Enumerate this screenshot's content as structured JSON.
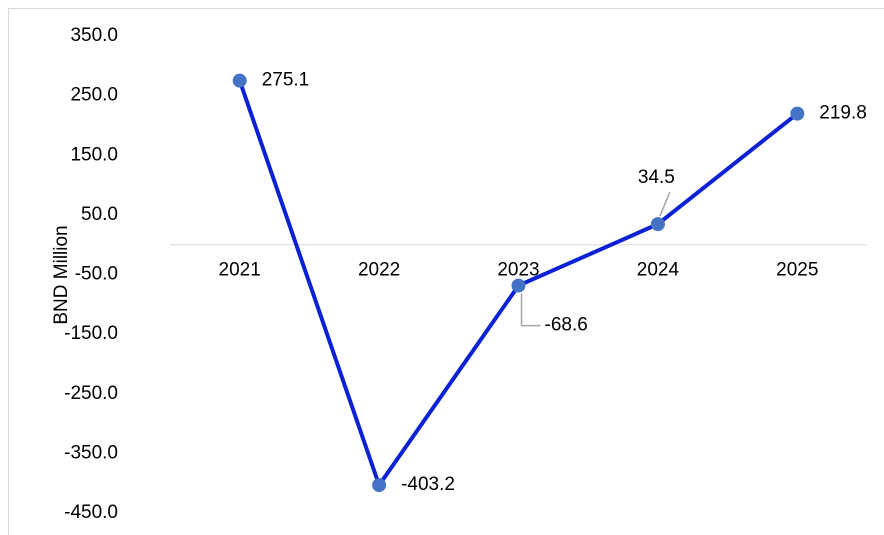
{
  "chart_data": {
    "type": "line",
    "y_label": "BND Million",
    "categories": [
      "2021",
      "2022",
      "2023",
      "2024",
      "2025"
    ],
    "series": [
      {
        "name": "BND Million",
        "color": "#0a22d4",
        "marker_color": "#4472c4",
        "values": [
          275.1,
          -403.2,
          -68.6,
          34.5,
          219.8
        ]
      }
    ],
    "ylim": [
      -450,
      350
    ],
    "yticks": [
      {
        "value": -450,
        "label": "-450.0"
      },
      {
        "value": -350,
        "label": "-350.0"
      },
      {
        "value": -250,
        "label": "-250.0"
      },
      {
        "value": -150,
        "label": "-150.0"
      },
      {
        "value": -50,
        "label": "-50.0"
      },
      {
        "value": 50,
        "label": "50.0"
      },
      {
        "value": 150,
        "label": "150.0"
      },
      {
        "value": 250,
        "label": "250.0"
      },
      {
        "value": 350,
        "label": "350.0"
      }
    ],
    "grid": false
  }
}
